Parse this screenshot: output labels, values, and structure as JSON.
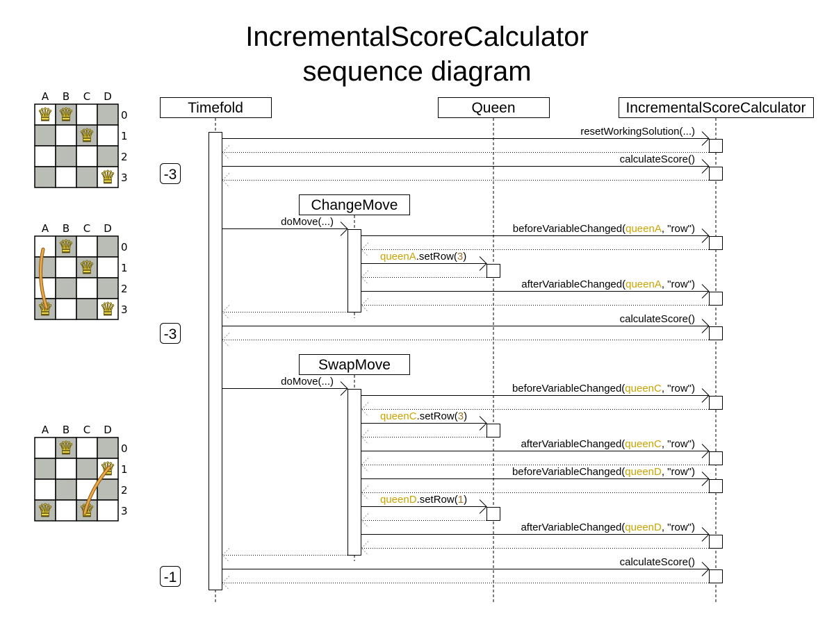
{
  "title": {
    "line1": "IncrementalScoreCalculator",
    "line2": "sequence diagram"
  },
  "colors": {
    "queen_name": "#c9a400",
    "number_arg": "#a0702a",
    "board_dark": "#babdb6",
    "queen_fill": "#f5e04a",
    "move_arrow": "#e9a74a"
  },
  "participants": [
    {
      "name": "Timefold"
    },
    {
      "name": "Queen"
    },
    {
      "name": "IncrementalScoreCalculator"
    }
  ],
  "moves": [
    {
      "name": "ChangeMove"
    },
    {
      "name": "SwapMove"
    }
  ],
  "scores": [
    "-3",
    "-3",
    "-1"
  ],
  "boards": {
    "columns": [
      "A",
      "B",
      "C",
      "D"
    ],
    "rows": [
      "0",
      "1",
      "2",
      "3"
    ],
    "states": [
      {
        "queens": [
          "A0",
          "B0",
          "C1",
          "D3"
        ],
        "move": null
      },
      {
        "queens": [
          "B0",
          "C1",
          "A3",
          "D3"
        ],
        "move": {
          "from": "A0",
          "to": "A3"
        }
      },
      {
        "queens": [
          "B0",
          "D1",
          "A3",
          "C3"
        ],
        "move": {
          "from": "C3",
          "to": "D1",
          "bidirectional": true
        }
      }
    ]
  },
  "messages": [
    {
      "parts": [
        {
          "text": "resetWorkingSolution(...)"
        }
      ]
    },
    {
      "parts": [
        {
          "text": "calculateScore()"
        }
      ]
    },
    {
      "parts": [
        {
          "text": "doMove(...)"
        }
      ]
    },
    {
      "parts": [
        {
          "text": "beforeVariableChanged("
        },
        {
          "text": "queenA",
          "kind": "queen"
        },
        {
          "text": ", \"row\")"
        }
      ]
    },
    {
      "parts": [
        {
          "text": "queenA",
          "kind": "queen"
        },
        {
          "text": ".setRow("
        },
        {
          "text": "3",
          "kind": "num"
        },
        {
          "text": ")"
        }
      ]
    },
    {
      "parts": [
        {
          "text": "afterVariableChanged("
        },
        {
          "text": "queenA",
          "kind": "queen"
        },
        {
          "text": ", \"row\")"
        }
      ]
    },
    {
      "parts": [
        {
          "text": "calculateScore()"
        }
      ]
    },
    {
      "parts": [
        {
          "text": "doMove(...)"
        }
      ]
    },
    {
      "parts": [
        {
          "text": "beforeVariableChanged("
        },
        {
          "text": "queenC",
          "kind": "queen"
        },
        {
          "text": ", \"row\")"
        }
      ]
    },
    {
      "parts": [
        {
          "text": "queenC",
          "kind": "queen"
        },
        {
          "text": ".setRow("
        },
        {
          "text": "3",
          "kind": "num"
        },
        {
          "text": ")"
        }
      ]
    },
    {
      "parts": [
        {
          "text": "afterVariableChanged("
        },
        {
          "text": "queenC",
          "kind": "queen"
        },
        {
          "text": ", \"row\")"
        }
      ]
    },
    {
      "parts": [
        {
          "text": "beforeVariableChanged("
        },
        {
          "text": "queenD",
          "kind": "queen"
        },
        {
          "text": ", \"row\")"
        }
      ]
    },
    {
      "parts": [
        {
          "text": "queenD",
          "kind": "queen"
        },
        {
          "text": ".setRow("
        },
        {
          "text": "1",
          "kind": "num"
        },
        {
          "text": ")"
        }
      ]
    },
    {
      "parts": [
        {
          "text": "afterVariableChanged("
        },
        {
          "text": "queenD",
          "kind": "queen"
        },
        {
          "text": ", \"row\")"
        }
      ]
    },
    {
      "parts": [
        {
          "text": "calculateScore()"
        }
      ]
    }
  ]
}
